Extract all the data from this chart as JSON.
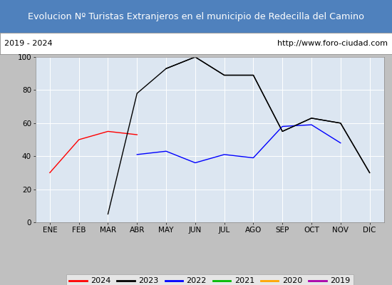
{
  "title": "Evolucion Nº Turistas Extranjeros en el municipio de Redecilla del Camino",
  "subtitle_left": "2019 - 2024",
  "subtitle_right": "http://www.foro-ciudad.com",
  "title_bg_color": "#4f81bd",
  "title_text_color": "#ffffff",
  "subtitle_bg_color": "#ffffff",
  "plot_bg_color": "#dce6f1",
  "months": [
    "ENE",
    "FEB",
    "MAR",
    "ABR",
    "MAY",
    "JUN",
    "JUL",
    "AGO",
    "SEP",
    "OCT",
    "NOV",
    "DIC"
  ],
  "ylim": [
    0,
    100
  ],
  "yticks": [
    0,
    20,
    40,
    60,
    80,
    100
  ],
  "series": {
    "2024": {
      "color": "#ff0000",
      "values": [
        30,
        50,
        55,
        53,
        null,
        null,
        null,
        null,
        null,
        null,
        null,
        null
      ]
    },
    "2023": {
      "color": "#000000",
      "values": [
        null,
        null,
        null,
        null,
        93,
        100,
        89,
        89,
        55,
        63,
        60,
        30
      ]
    },
    "2022": {
      "color": "#0000ff",
      "values": [
        null,
        null,
        null,
        41,
        43,
        36,
        41,
        39,
        58,
        59,
        48,
        null
      ]
    },
    "2021": {
      "color": "#00bb00",
      "values": [
        null,
        null,
        null,
        null,
        null,
        null,
        null,
        null,
        null,
        null,
        null,
        null
      ]
    },
    "2020": {
      "color": "#ffa500",
      "values": [
        null,
        null,
        null,
        null,
        null,
        null,
        null,
        null,
        null,
        null,
        null,
        null
      ]
    },
    "2019": {
      "color": "#aa00aa",
      "values": [
        null,
        null,
        null,
        null,
        null,
        null,
        null,
        null,
        null,
        null,
        null,
        null
      ]
    }
  },
  "legend_order": [
    "2024",
    "2023",
    "2022",
    "2021",
    "2020",
    "2019"
  ],
  "figsize": [
    5.5,
    4.0
  ],
  "dpi": 100
}
